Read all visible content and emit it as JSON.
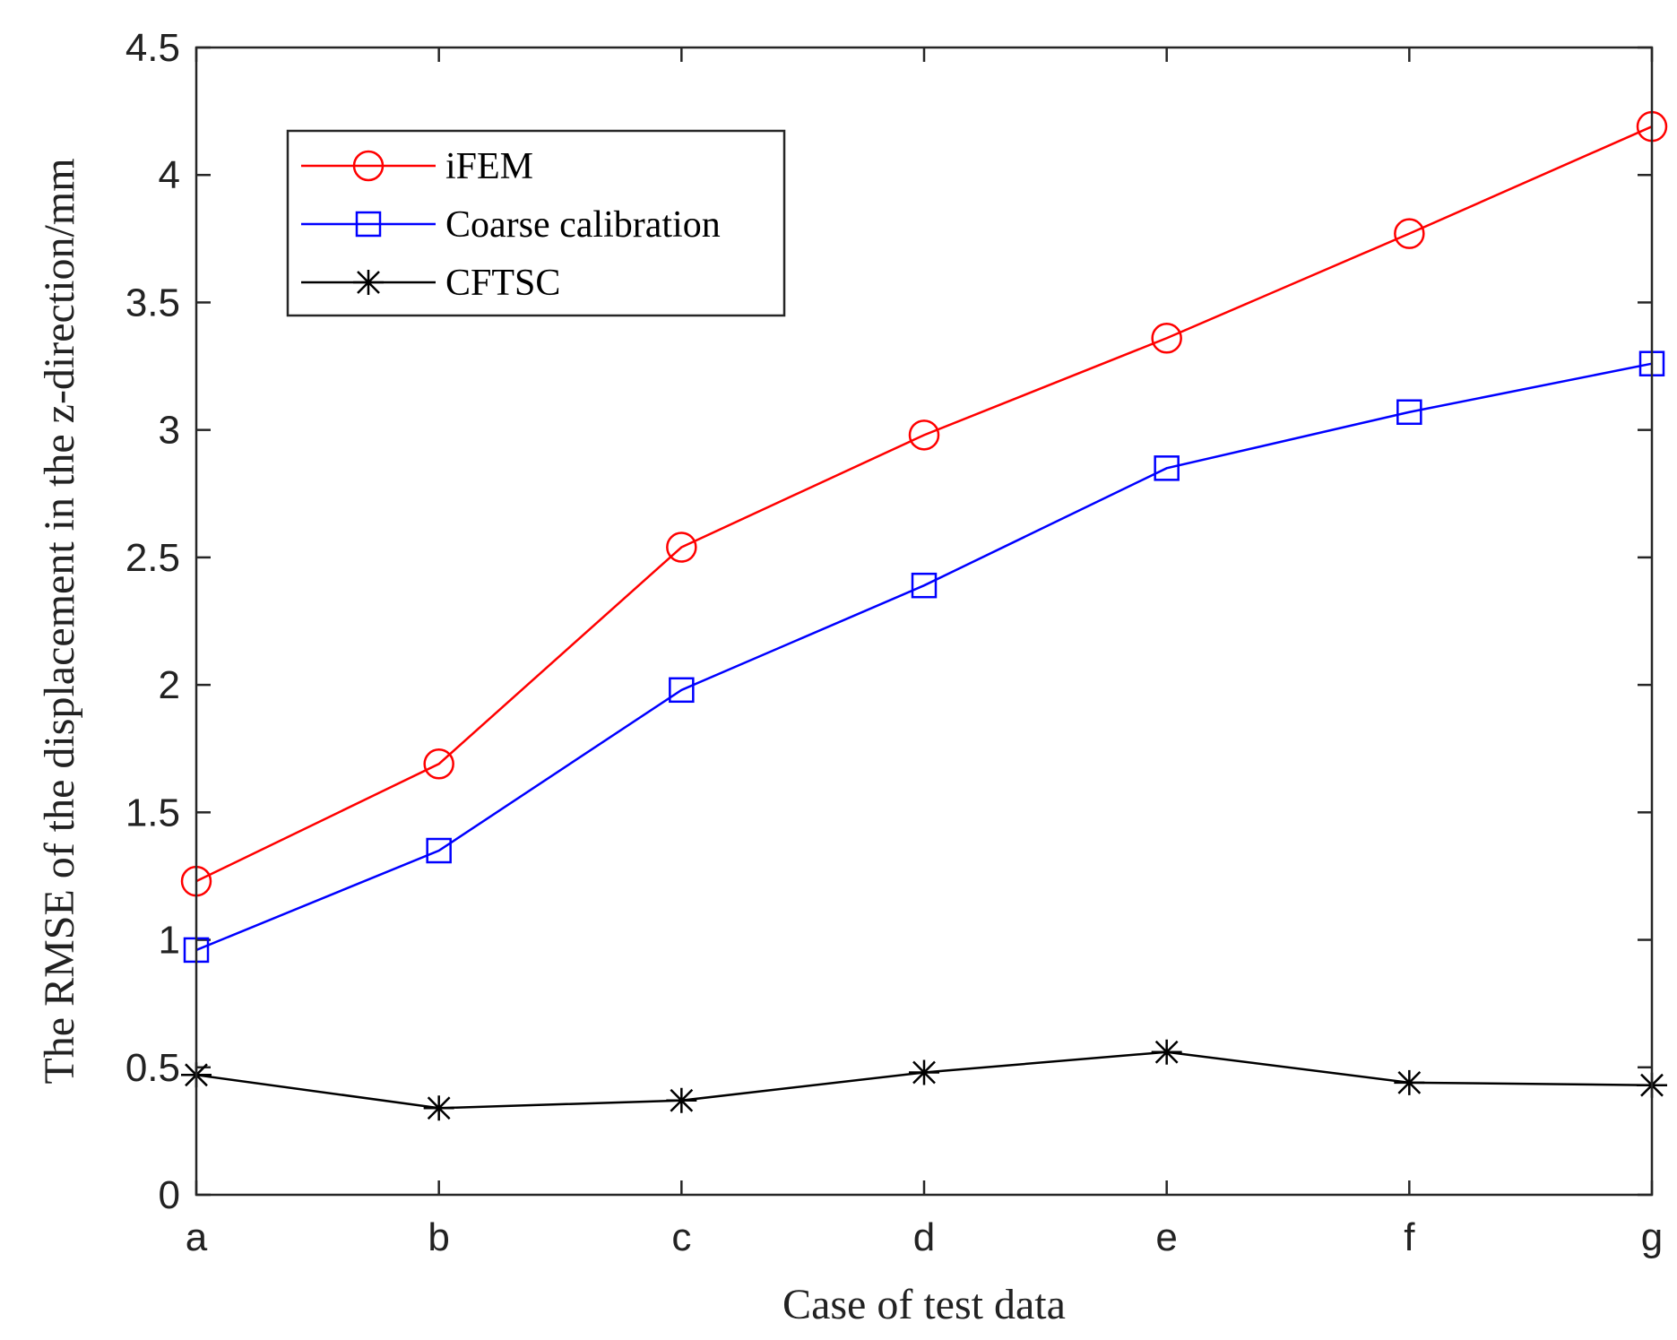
{
  "chart_data": {
    "type": "line",
    "title": "",
    "xlabel": "Case of test data",
    "ylabel": "The RMSE of the displacement in the z-direction/mm",
    "categories": [
      "a",
      "b",
      "c",
      "d",
      "e",
      "f",
      "g"
    ],
    "ylim": [
      0,
      4.5
    ],
    "yticks": [
      "0",
      "0.5",
      "1",
      "1.5",
      "2",
      "2.5",
      "3",
      "3.5",
      "4",
      "4.5"
    ],
    "grid": false,
    "legend_position": "top-left",
    "series": [
      {
        "name": "iFEM",
        "color": "#ff0000",
        "marker": "circle",
        "values": [
          1.23,
          1.69,
          2.54,
          2.98,
          3.36,
          3.77,
          4.19
        ]
      },
      {
        "name": "Coarse calibration",
        "color": "#0000ff",
        "marker": "square",
        "values": [
          0.96,
          1.35,
          1.98,
          2.39,
          2.85,
          3.07,
          3.26
        ]
      },
      {
        "name": "CFTSC",
        "color": "#000000",
        "marker": "asterisk",
        "values": [
          0.47,
          0.34,
          0.37,
          0.48,
          0.56,
          0.44,
          0.43
        ]
      }
    ]
  }
}
